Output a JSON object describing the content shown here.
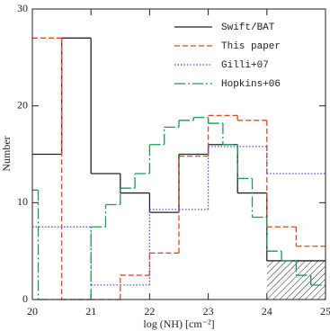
{
  "chart_data": {
    "type": "histogram",
    "x_label": "log (NH) [cm⁻²]",
    "y_label": "Number",
    "xlim": [
      20,
      25
    ],
    "xticks": [
      20,
      21,
      22,
      23,
      24,
      25
    ],
    "ylim": [
      0,
      30
    ],
    "yticks": [
      0,
      10,
      20,
      30
    ],
    "legend": "upper right",
    "series": [
      {
        "name": "Swift/BAT",
        "color": "#222222",
        "dash": "solid",
        "bins": [
          20,
          20.5,
          21,
          21.5,
          22,
          22.5,
          23,
          23.5,
          24,
          25
        ],
        "values": [
          15,
          27,
          13,
          11,
          9,
          15,
          16,
          11,
          4
        ],
        "hatched_bins": [
          8
        ]
      },
      {
        "name": "This paper",
        "color": "#e8432a",
        "dash": "dashed",
        "bins": [
          20,
          20.5,
          21,
          21.5,
          22,
          22.5,
          23,
          23.5,
          24,
          24.5,
          25
        ],
        "values": [
          27,
          0,
          0,
          2.5,
          4.8,
          14.8,
          19,
          18.5,
          7.5,
          5.5
        ]
      },
      {
        "name": "Gilli+07",
        "color": "#4455cc",
        "dash": "dotted",
        "bins": [
          20,
          21,
          21.5,
          22,
          22.5,
          23,
          24,
          25
        ],
        "values": [
          7.5,
          1.5,
          1.5,
          9.3,
          9.3,
          15.8,
          13
        ]
      },
      {
        "name": "Hopkins+06",
        "color": "#1a9a55",
        "dash": "longdash",
        "bins": [
          20,
          20.1,
          21,
          21.25,
          21.5,
          21.75,
          22,
          22.25,
          22.5,
          22.75,
          23,
          23.25,
          23.5,
          23.75,
          24,
          24.25,
          24.5,
          24.75,
          25
        ],
        "values": [
          11.3,
          0,
          7.5,
          9.8,
          11.5,
          13,
          16,
          17.8,
          18.5,
          18.8,
          18.2,
          16,
          12.5,
          8.5,
          5,
          4,
          2.5,
          1.5
        ]
      }
    ]
  }
}
